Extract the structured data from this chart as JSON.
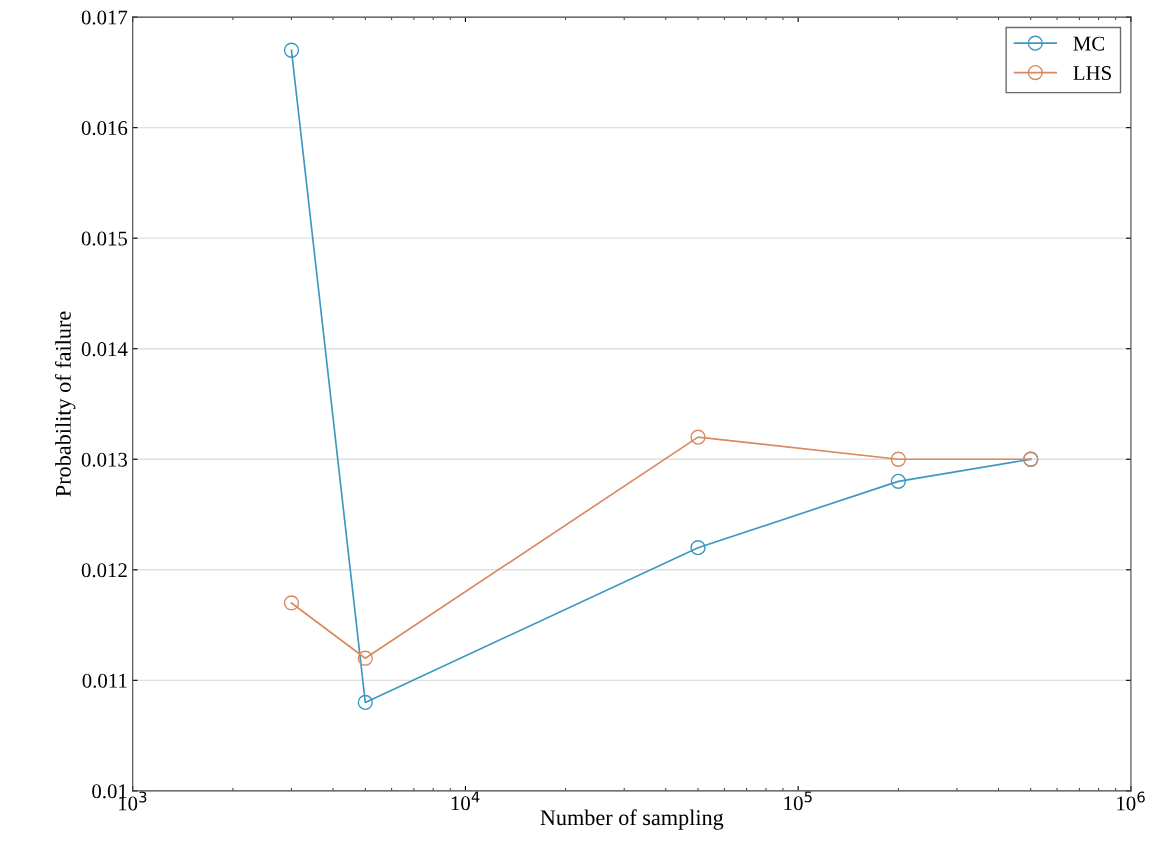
{
  "chart_data": {
    "type": "line",
    "xlabel": "Number of sampling",
    "ylabel": "Probability of failure",
    "x": [
      3000,
      5000,
      50000,
      200000,
      500000
    ],
    "series": [
      {
        "name": "MC",
        "color": "#3d98c0",
        "values": [
          0.0167,
          0.0108,
          0.0122,
          0.0128,
          0.013
        ]
      },
      {
        "name": "LHS",
        "color": "#d98a5e",
        "values": [
          0.0117,
          0.0112,
          0.0132,
          0.013,
          0.013
        ]
      }
    ],
    "log": "x",
    "xlim": [
      1000,
      1000000
    ],
    "xticks": [
      {
        "value": 1000,
        "label": "10$^{3}$"
      },
      {
        "value": 10000,
        "label": "10$^{4}$"
      },
      {
        "value": 100000,
        "label": "10$^{5}$"
      },
      {
        "value": 1000000,
        "label": "10$^{6}$"
      }
    ],
    "ylim": [
      0.01,
      0.017
    ],
    "yticks": [
      0.01,
      0.011,
      0.012,
      0.013,
      0.014,
      0.015,
      0.016,
      0.017
    ],
    "grid": "y",
    "legend": "top right",
    "marker": "circle",
    "line_style": "solid"
  }
}
